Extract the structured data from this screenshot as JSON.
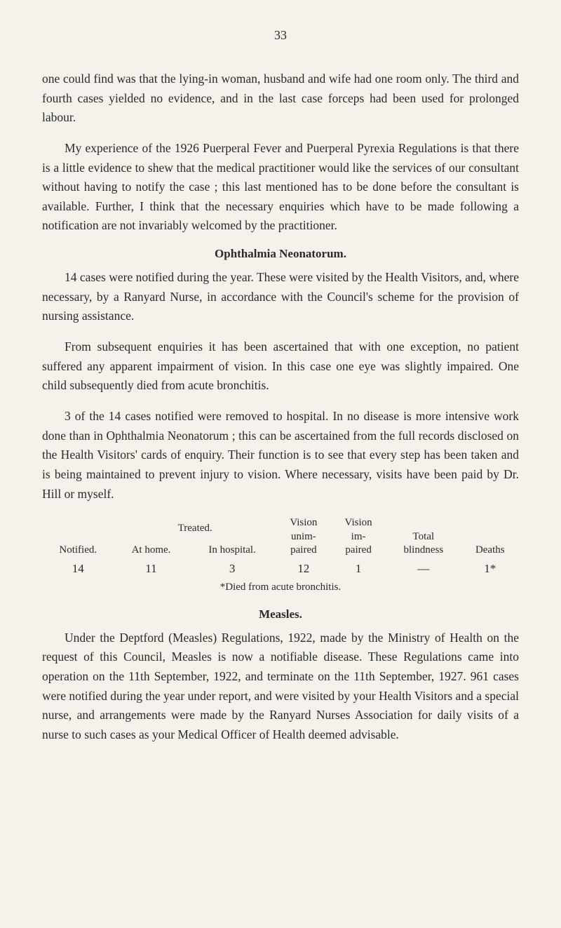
{
  "page_number": "33",
  "paragraphs": {
    "p1": "one could find was that the lying-in woman, husband and wife had one room only. The third and fourth cases yielded no evidence, and in the last case forceps had been used for prolonged labour.",
    "p2": "My experience of the 1926 Puerperal Fever and Puerperal Pyrexia Regulations is that there is a little evidence to shew that the medical practitioner would like the services of our consultant without having to notify the case ; this last mentioned has to be done before the consultant is available. Further, I think that the necessary enquiries which have to be made following a notification are not invariably welcomed by the practitioner.",
    "h1": "Ophthalmia Neonatorum.",
    "p3": "14 cases were notified during the year. These were visited by the Health Visitors, and, where necessary, by a Ranyard Nurse, in accordance with the Council's scheme for the provision of nursing assistance.",
    "p4": "From subsequent enquiries it has been ascertained that with one exception, no patient suffered any apparent impairment of vision. In this case one eye was slightly impaired. One child subsequently died from acute bronchitis.",
    "p5": "3 of the 14 cases notified were removed to hospital. In no disease is more intensive work done than in Ophthalmia Neonatorum ; this can be ascertained from the full records disclosed on the Health Visitors' cards of enquiry. Their function is to see that every step has been taken and is being maintained to prevent injury to vision. Where necessary, visits have been paid by Dr. Hill or myself.",
    "footnote": "*Died from acute bronchitis.",
    "h2": "Measles.",
    "p6": "Under the Deptford (Measles) Regulations, 1922, made by the Ministry of Health on the request of this Council, Measles is now a notifiable disease. These Regulations came into operation on the 11th September, 1922, and terminate on the 11th September, 1927. 961 cases were notified during the year under report, and were visited by your Health Visitors and a special nurse, and arrangements were made by the Ranyard Nurses Association for daily visits of a nurse to such cases as your Medical Officer of Health deemed advisable."
  },
  "table": {
    "headers": {
      "notified": "Notified.",
      "treated": "Treated.",
      "at_home": "At home.",
      "in_hospital": "In hospital.",
      "vision_unimpaired": "Vision\nunim-\npaired",
      "vision_impaired": "Vision\nim-\npaired",
      "total_blindness": "Total\nblindness",
      "deaths": "Deaths"
    },
    "row": {
      "notified": "14",
      "at_home": "11",
      "in_hospital": "3",
      "vision_unimpaired": "12",
      "vision_impaired": "1",
      "total_blindness": "—",
      "deaths": "1*"
    }
  },
  "colors": {
    "background": "#f5f2eb",
    "text": "#2a2a2a"
  },
  "fonts": {
    "body_size": 17.5,
    "heading_size": 17,
    "table_header_size": 15,
    "table_cell_size": 17
  }
}
